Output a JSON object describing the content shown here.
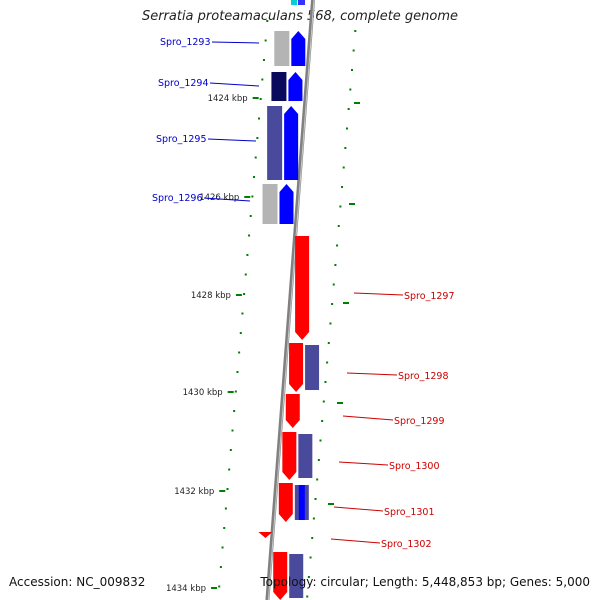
{
  "title": "Serratia proteamaculans 568, complete genome",
  "accession": "Accession: NC_009832",
  "summary": "Topology: circular; Length: 5,448,853 bp; Genes: 5,000",
  "colors": {
    "backbone": "#808080",
    "forward_gene": "#0000ff",
    "reverse_gene": "#ff0000",
    "forward_label": "#0000cc",
    "reverse_label": "#cc0000",
    "tick": "#008000",
    "cog_blue": "#4a4a9c",
    "cog_navy": "#0a0a5c",
    "cog_gray": "#b4b4b4"
  },
  "scale": {
    "ticks": [
      "1424 kbp",
      "1426 kbp",
      "1428 kbp",
      "1430 kbp",
      "1432 kbp",
      "1434 kbp"
    ]
  },
  "genes": [
    {
      "name": "Spro_1293",
      "strand": "forward"
    },
    {
      "name": "Spro_1294",
      "strand": "forward"
    },
    {
      "name": "Spro_1295",
      "strand": "forward"
    },
    {
      "name": "Spro_1296",
      "strand": "forward"
    },
    {
      "name": "Spro_1297",
      "strand": "reverse"
    },
    {
      "name": "Spro_1298",
      "strand": "reverse"
    },
    {
      "name": "Spro_1299",
      "strand": "reverse"
    },
    {
      "name": "Spro_1300",
      "strand": "reverse"
    },
    {
      "name": "Spro_1301",
      "strand": "reverse"
    },
    {
      "name": "Spro_1302",
      "strand": "reverse"
    }
  ]
}
